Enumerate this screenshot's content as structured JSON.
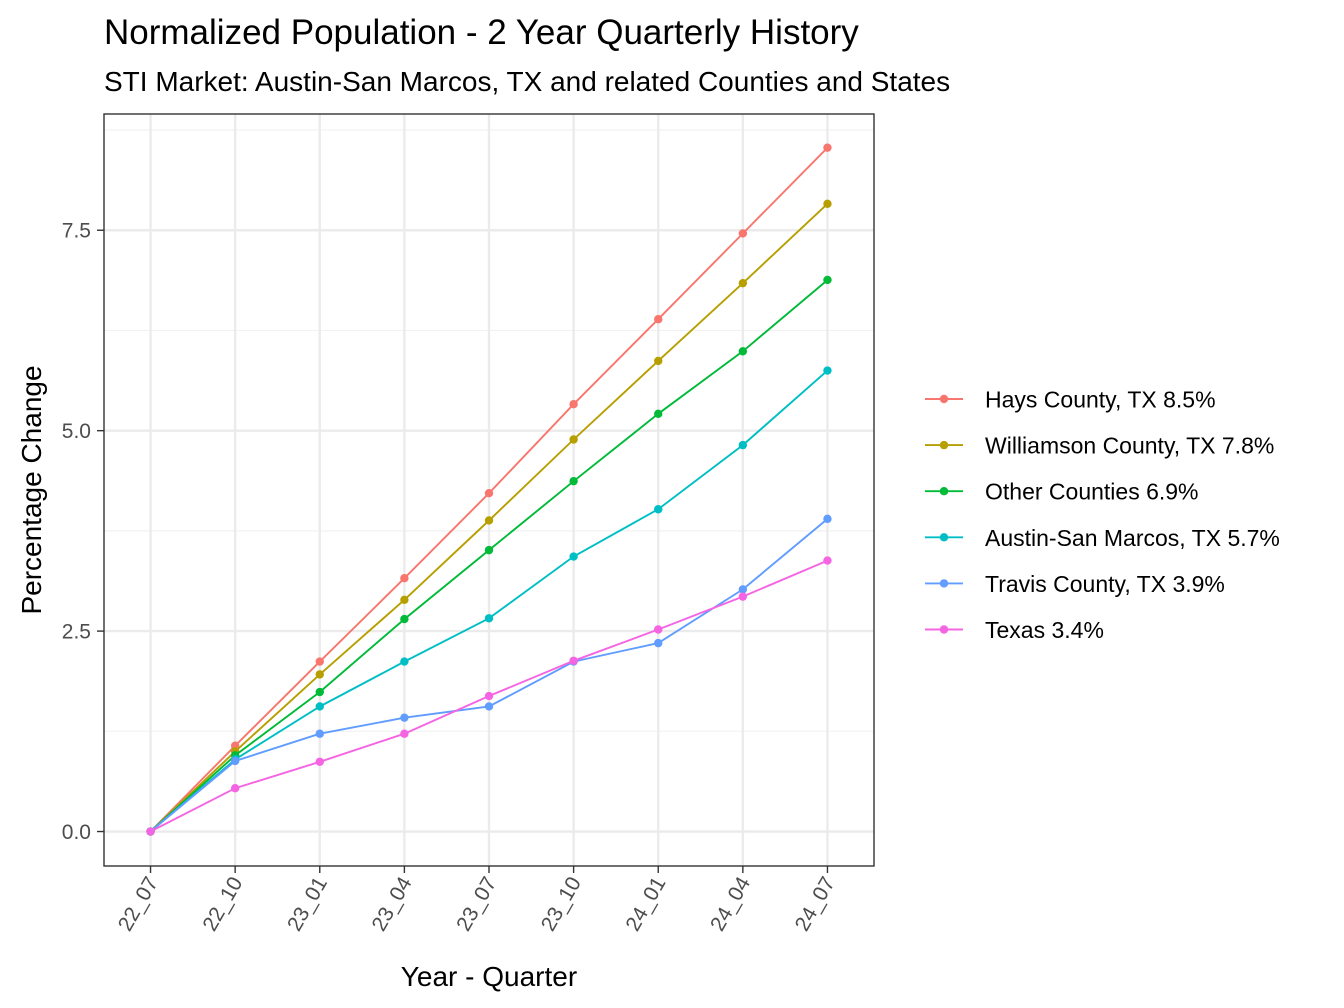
{
  "chart_data": {
    "type": "line",
    "title": "Normalized Population - 2 Year Quarterly History",
    "subtitle": "STI Market: Austin-San Marcos, TX and related Counties and States",
    "xlabel": "Year - Quarter",
    "ylabel": "Percentage Change",
    "categories": [
      "22_07",
      "22_10",
      "23_01",
      "23_04",
      "23_07",
      "23_10",
      "24_01",
      "24_04",
      "24_07"
    ],
    "y_ticks": [
      "0.0",
      "2.5",
      "5.0",
      "7.5"
    ],
    "y_tick_values": [
      0,
      2.5,
      5,
      7.5
    ],
    "ylim": [
      -0.43,
      8.95
    ],
    "grid": true,
    "legend_position": "right",
    "series": [
      {
        "name": "Hays County, TX 8.5%",
        "color": "#F8766D",
        "values": [
          0,
          1.07,
          2.12,
          3.16,
          4.22,
          5.33,
          6.39,
          7.46,
          8.53
        ]
      },
      {
        "name": "Williamson County, TX 7.8%",
        "color": "#B79F00",
        "values": [
          0,
          1.0,
          1.96,
          2.89,
          3.88,
          4.89,
          5.87,
          6.84,
          7.83
        ]
      },
      {
        "name": "Other Counties 6.9%",
        "color": "#00BA38",
        "values": [
          0,
          0.95,
          1.74,
          2.65,
          3.51,
          4.37,
          5.21,
          5.99,
          6.88
        ]
      },
      {
        "name": "Austin-San Marcos, TX 5.7%",
        "color": "#00BFC4",
        "values": [
          0,
          0.9,
          1.56,
          2.12,
          2.66,
          3.43,
          4.02,
          4.82,
          5.75
        ]
      },
      {
        "name": "Travis County, TX 3.9%",
        "color": "#619CFF",
        "values": [
          0,
          0.88,
          1.22,
          1.42,
          1.56,
          2.12,
          2.35,
          3.02,
          3.9
        ]
      },
      {
        "name": "Texas 3.4%",
        "color": "#F564E3",
        "values": [
          0,
          0.54,
          0.87,
          1.22,
          1.69,
          2.13,
          2.52,
          2.93,
          3.38
        ]
      }
    ]
  }
}
